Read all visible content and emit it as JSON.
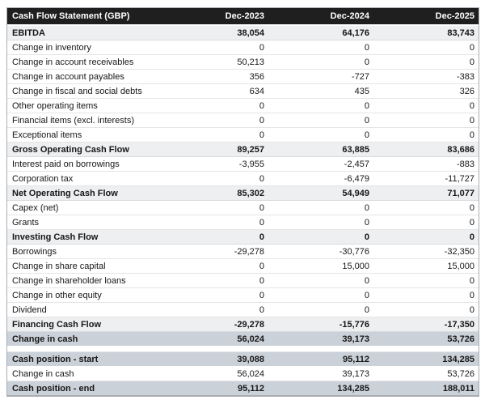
{
  "colors": {
    "header_bg": "#1f1f1f",
    "header_text": "#ffffff",
    "subtotal_row_bg": "#edeff1",
    "highlight_row_bg": "#cbd1d8",
    "body_text": "#171717",
    "outer_border": "#a9adb2"
  },
  "table": {
    "header": {
      "label": "Cash Flow Statement (GBP)",
      "columns": [
        "Dec-2023",
        "Dec-2024",
        "Dec-2025"
      ]
    },
    "rows": [
      {
        "label": "EBITDA",
        "values": [
          "38,054",
          "64,176",
          "83,743"
        ],
        "style": "subtotal"
      },
      {
        "label": "Change in inventory",
        "values": [
          "0",
          "0",
          "0"
        ],
        "style": "normal"
      },
      {
        "label": "Change in account receivables",
        "values": [
          "50,213",
          "0",
          "0"
        ],
        "style": "normal"
      },
      {
        "label": "Change in account payables",
        "values": [
          "356",
          "-727",
          "-383"
        ],
        "style": "normal"
      },
      {
        "label": "Change in fiscal and social debts",
        "values": [
          "634",
          "435",
          "326"
        ],
        "style": "normal"
      },
      {
        "label": "Other operating items",
        "values": [
          "0",
          "0",
          "0"
        ],
        "style": "normal"
      },
      {
        "label": "Financial items (excl. interests)",
        "values": [
          "0",
          "0",
          "0"
        ],
        "style": "normal"
      },
      {
        "label": "Exceptional items",
        "values": [
          "0",
          "0",
          "0"
        ],
        "style": "normal"
      },
      {
        "label": "Gross Operating Cash Flow",
        "values": [
          "89,257",
          "63,885",
          "83,686"
        ],
        "style": "subtotal"
      },
      {
        "label": "Interest paid on borrowings",
        "values": [
          "-3,955",
          "-2,457",
          "-883"
        ],
        "style": "normal"
      },
      {
        "label": "Corporation tax",
        "values": [
          "0",
          "-6,479",
          "-11,727"
        ],
        "style": "normal"
      },
      {
        "label": "Net Operating Cash Flow",
        "values": [
          "85,302",
          "54,949",
          "71,077"
        ],
        "style": "subtotal"
      },
      {
        "label": "Capex (net)",
        "values": [
          "0",
          "0",
          "0"
        ],
        "style": "normal"
      },
      {
        "label": "Grants",
        "values": [
          "0",
          "0",
          "0"
        ],
        "style": "normal"
      },
      {
        "label": "Investing Cash Flow",
        "values": [
          "0",
          "0",
          "0"
        ],
        "style": "subtotal"
      },
      {
        "label": "Borrowings",
        "values": [
          "-29,278",
          "-30,776",
          "-32,350"
        ],
        "style": "normal"
      },
      {
        "label": "Change in share capital",
        "values": [
          "0",
          "15,000",
          "15,000"
        ],
        "style": "normal"
      },
      {
        "label": "Change in shareholder loans",
        "values": [
          "0",
          "0",
          "0"
        ],
        "style": "normal"
      },
      {
        "label": "Change in other equity",
        "values": [
          "0",
          "0",
          "0"
        ],
        "style": "normal"
      },
      {
        "label": "Dividend",
        "values": [
          "0",
          "0",
          "0"
        ],
        "style": "normal"
      },
      {
        "label": "Financing Cash Flow",
        "values": [
          "-29,278",
          "-15,776",
          "-17,350"
        ],
        "style": "subtotal"
      },
      {
        "label": "Change in cash",
        "values": [
          "56,024",
          "39,173",
          "53,726"
        ],
        "style": "highlight"
      },
      {
        "label": "Cash position - start",
        "values": [
          "39,088",
          "95,112",
          "134,285"
        ],
        "style": "highlight",
        "gap_before": true
      },
      {
        "label": "Change in cash",
        "values": [
          "56,024",
          "39,173",
          "53,726"
        ],
        "style": "normal"
      },
      {
        "label": "Cash position - end",
        "values": [
          "95,112",
          "134,285",
          "188,011"
        ],
        "style": "highlight"
      }
    ]
  }
}
